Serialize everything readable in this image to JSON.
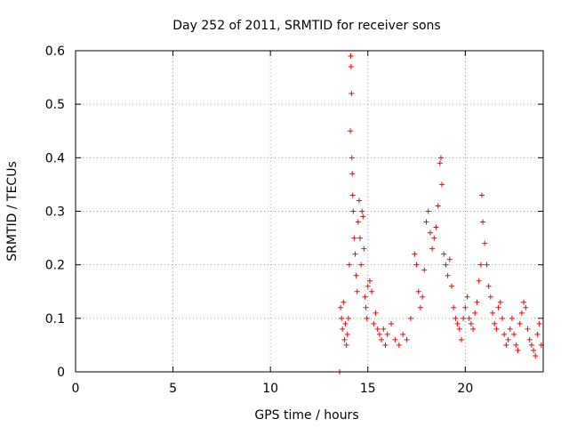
{
  "chart_data": {
    "type": "scatter",
    "title": "Day 252 of 2011, SRMTID for receiver sons",
    "xlabel": "GPS time / hours",
    "ylabel": "SRMTID / TECUs",
    "xlim": [
      0,
      24
    ],
    "ylim": [
      0,
      0.6
    ],
    "xticks": [
      0,
      5,
      10,
      15,
      20
    ],
    "yticks": [
      0,
      0.1,
      0.2,
      0.3,
      0.4,
      0.5,
      0.6
    ],
    "xtick_labels": [
      "0",
      "5",
      "10",
      "15",
      "20"
    ],
    "ytick_labels": [
      "0",
      "0.1",
      "0.2",
      "0.3",
      "0.4",
      "0.5",
      "0.6"
    ],
    "grid": true,
    "marker": "+",
    "series": [
      {
        "name": "SRMTID",
        "color": "#ff0000",
        "x": [
          13.55,
          13.6,
          13.65,
          13.7,
          13.75,
          13.8,
          13.85,
          13.9,
          13.95,
          14.0,
          14.05,
          14.1,
          14.12,
          14.14,
          14.16,
          14.18,
          14.2,
          14.22,
          14.25,
          14.3,
          14.35,
          14.4,
          14.45,
          14.5,
          14.55,
          14.6,
          14.65,
          14.7,
          14.75,
          14.8,
          14.85,
          14.9,
          14.95,
          15.0,
          15.1,
          15.2,
          15.3,
          15.4,
          15.5,
          15.6,
          15.7,
          15.8,
          15.9,
          16.0,
          16.2,
          16.4,
          16.6,
          16.8,
          17.0,
          17.2,
          17.4,
          17.5,
          17.6,
          17.7,
          17.8,
          17.9,
          18.0,
          18.1,
          18.2,
          18.3,
          18.4,
          18.5,
          18.6,
          18.7,
          18.75,
          18.8,
          18.9,
          19.0,
          19.1,
          19.2,
          19.3,
          19.4,
          19.5,
          19.6,
          19.7,
          19.8,
          19.9,
          20.0,
          20.1,
          20.2,
          20.3,
          20.4,
          20.5,
          20.6,
          20.7,
          20.8,
          20.85,
          20.9,
          21.0,
          21.1,
          21.2,
          21.3,
          21.4,
          21.5,
          21.6,
          21.7,
          21.8,
          21.9,
          22.0,
          22.1,
          22.2,
          22.3,
          22.4,
          22.5,
          22.6,
          22.7,
          22.8,
          22.9,
          23.0,
          23.1,
          23.2,
          23.3,
          23.4,
          23.5,
          23.6,
          23.7,
          23.8,
          23.9
        ],
        "y": [
          0.0,
          0.12,
          0.1,
          0.08,
          0.13,
          0.06,
          0.09,
          0.05,
          0.07,
          0.1,
          0.2,
          0.45,
          0.59,
          0.57,
          0.52,
          0.4,
          0.37,
          0.33,
          0.3,
          0.25,
          0.22,
          0.18,
          0.15,
          0.28,
          0.32,
          0.25,
          0.2,
          0.3,
          0.29,
          0.23,
          0.14,
          0.12,
          0.1,
          0.16,
          0.17,
          0.15,
          0.09,
          0.11,
          0.08,
          0.07,
          0.06,
          0.08,
          0.05,
          0.07,
          0.09,
          0.06,
          0.05,
          0.07,
          0.06,
          0.1,
          0.22,
          0.2,
          0.15,
          0.12,
          0.14,
          0.19,
          0.28,
          0.3,
          0.26,
          0.23,
          0.25,
          0.27,
          0.31,
          0.39,
          0.4,
          0.35,
          0.22,
          0.2,
          0.18,
          0.21,
          0.16,
          0.12,
          0.1,
          0.09,
          0.08,
          0.06,
          0.1,
          0.12,
          0.14,
          0.1,
          0.09,
          0.08,
          0.11,
          0.13,
          0.17,
          0.2,
          0.33,
          0.28,
          0.24,
          0.2,
          0.16,
          0.14,
          0.11,
          0.09,
          0.08,
          0.12,
          0.13,
          0.1,
          0.07,
          0.05,
          0.06,
          0.08,
          0.1,
          0.07,
          0.05,
          0.04,
          0.09,
          0.11,
          0.13,
          0.12,
          0.08,
          0.06,
          0.05,
          0.04,
          0.03,
          0.07,
          0.09,
          0.05
        ]
      }
    ]
  }
}
